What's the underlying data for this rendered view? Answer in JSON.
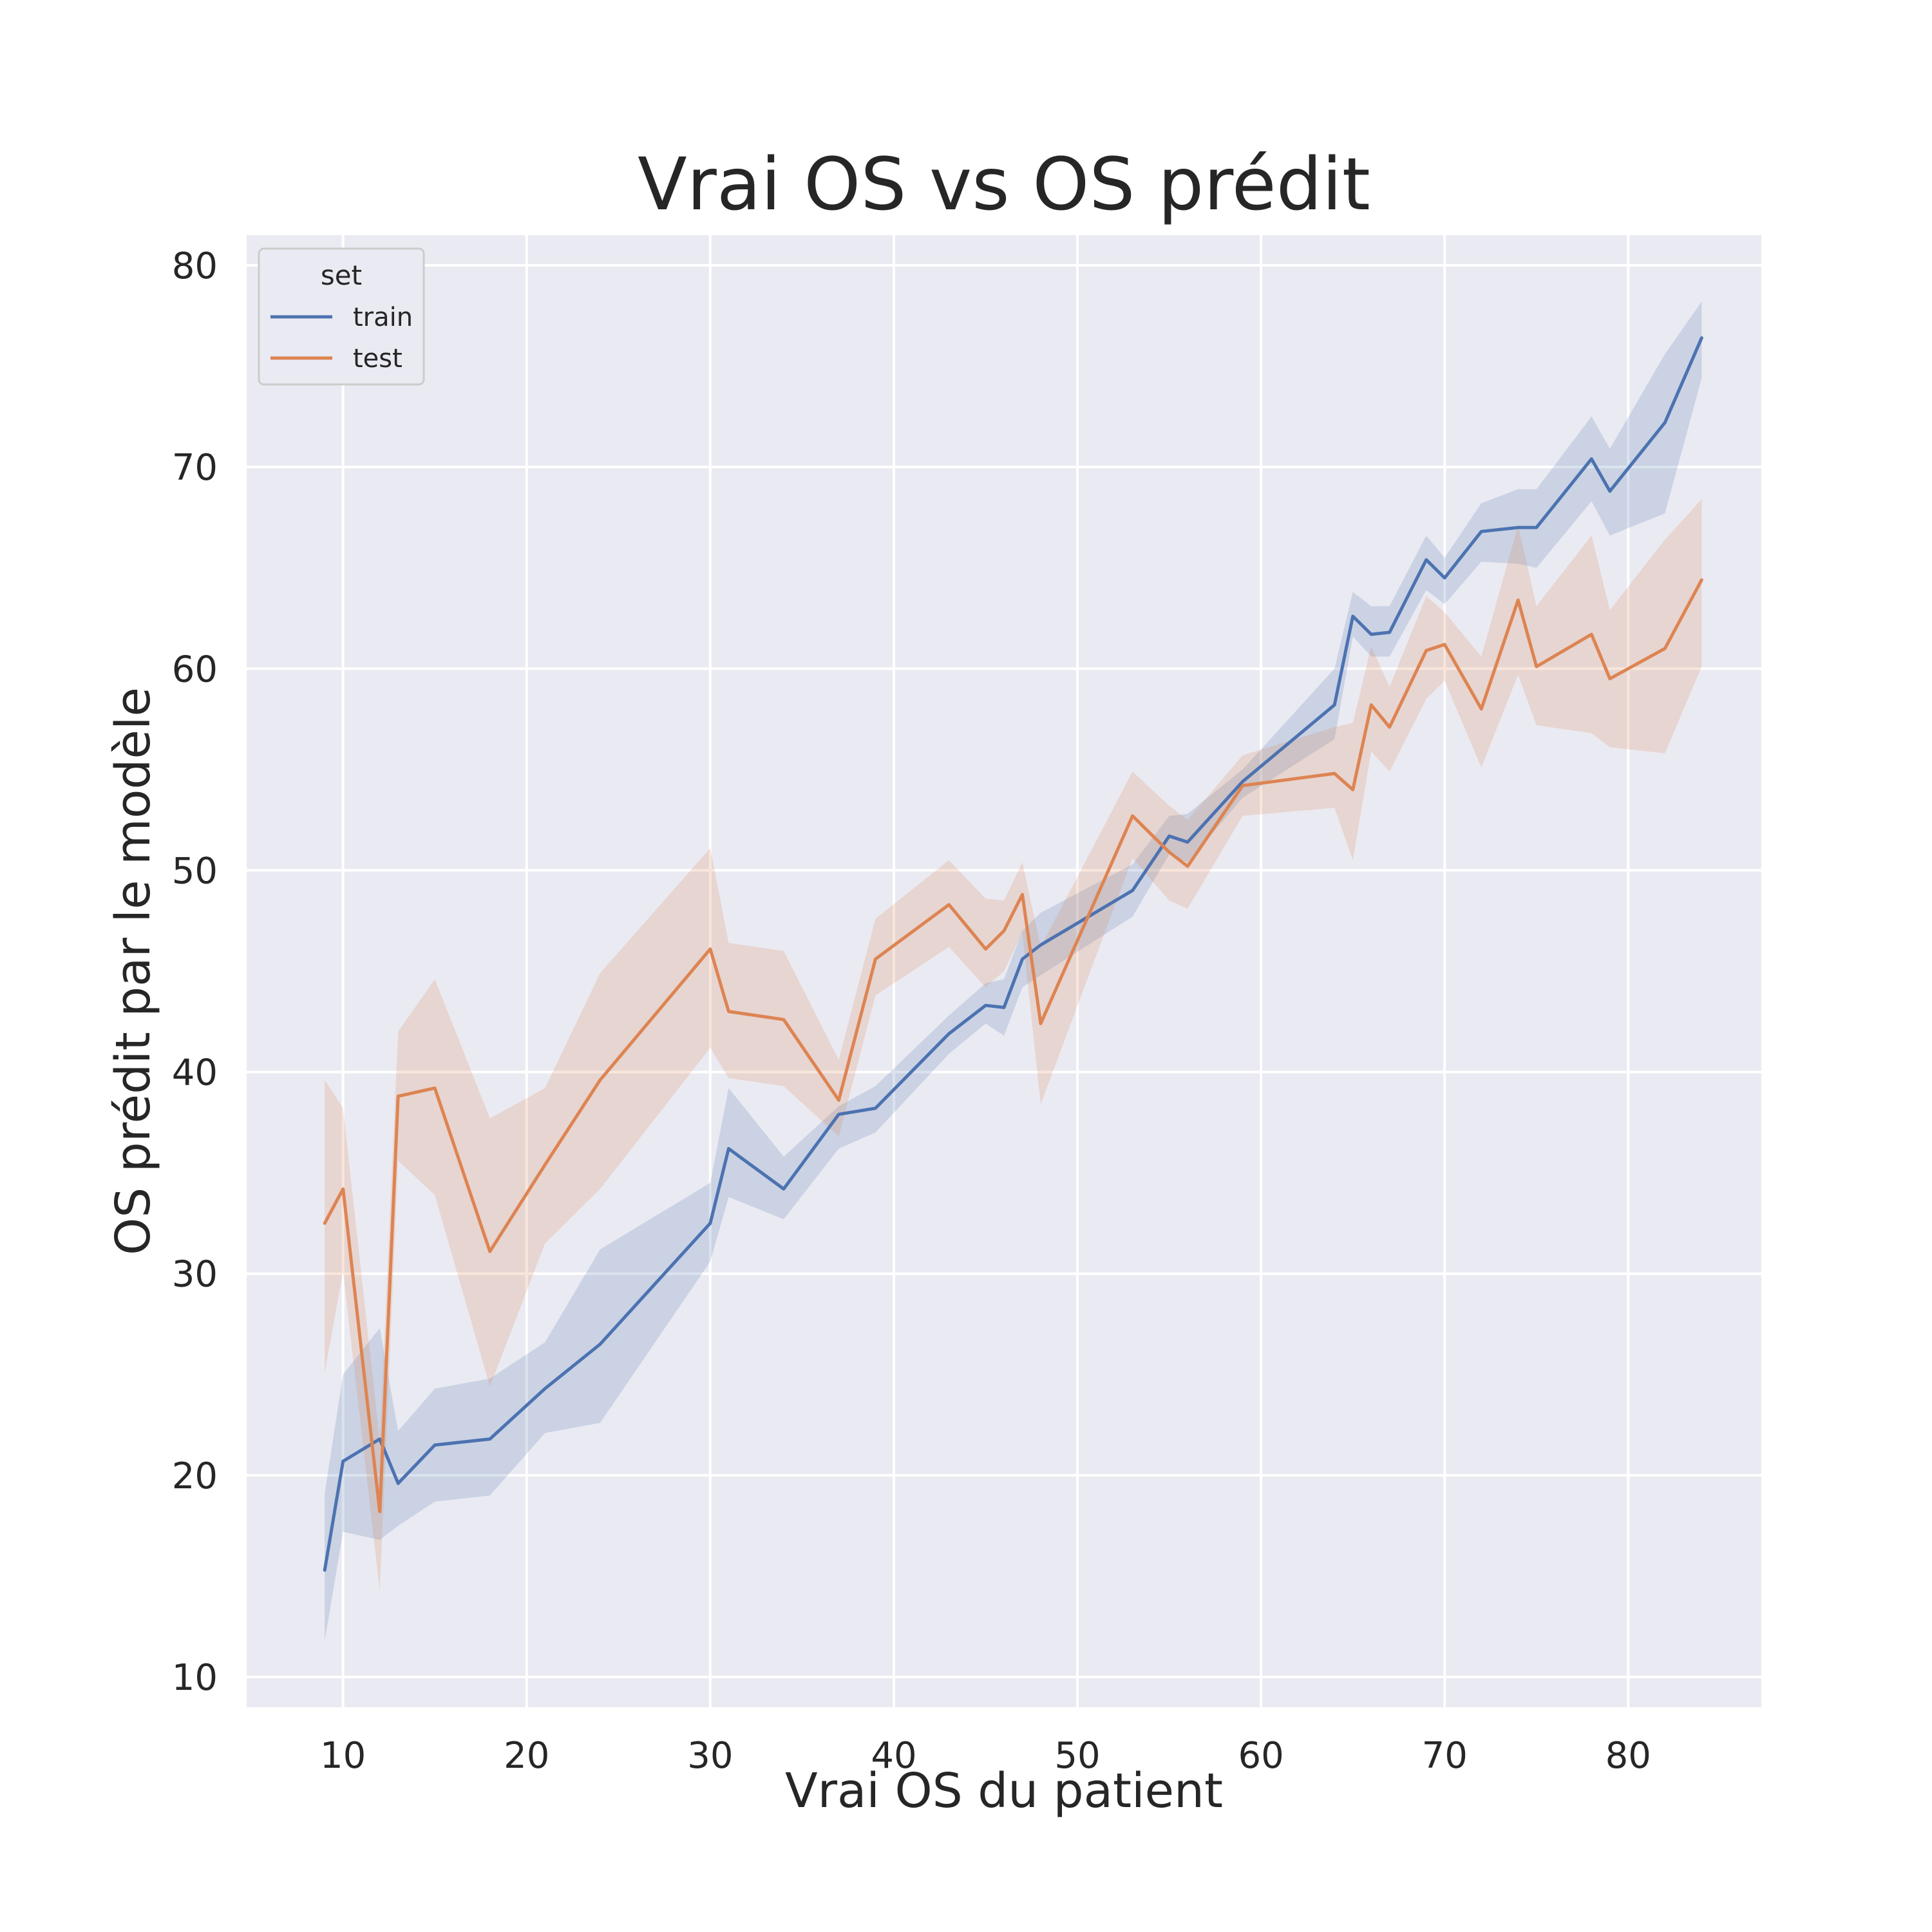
{
  "chart_data": {
    "type": "line",
    "title": "Vrai OS vs OS prédit",
    "xlabel": "Vrai OS du patient",
    "ylabel": "OS prédit par le modèle",
    "xlim": [
      4.75,
      87.25
    ],
    "ylim": [
      8.5,
      81.5
    ],
    "xticks": [
      10,
      20,
      30,
      40,
      50,
      60,
      70,
      80
    ],
    "yticks": [
      10,
      20,
      30,
      40,
      50,
      60,
      70,
      80
    ],
    "grid": true,
    "legend": {
      "title": "set",
      "location": "top-left"
    },
    "colors": {
      "background": "#eaeaf2",
      "grid": "#ffffff",
      "text": "#262626"
    },
    "series": [
      {
        "name": "train",
        "color": "#4c72b0",
        "x": [
          9,
          10,
          12,
          13,
          15,
          18,
          21,
          24,
          30,
          31,
          34,
          37,
          39,
          43,
          45,
          46,
          47,
          48,
          53,
          55,
          56,
          59,
          64,
          65,
          66,
          67,
          69,
          70,
          72,
          74,
          75,
          78,
          79,
          82,
          84
        ],
        "y": [
          15.3,
          20.7,
          21.8,
          19.6,
          21.5,
          21.8,
          24.3,
          26.5,
          32.5,
          36.2,
          34.2,
          37.9,
          38.2,
          41.9,
          43.3,
          43.2,
          45.6,
          46.3,
          49.0,
          51.7,
          51.4,
          54.4,
          58.2,
          62.6,
          61.7,
          61.8,
          65.4,
          64.5,
          66.8,
          67.0,
          67.0,
          70.4,
          68.8,
          72.2,
          76.4
        ],
        "lower": [
          11.8,
          17.2,
          16.8,
          17.5,
          18.7,
          19.0,
          22.1,
          22.6,
          30.6,
          33.8,
          32.7,
          36.2,
          37.0,
          40.9,
          42.4,
          41.8,
          44.2,
          44.8,
          47.7,
          50.8,
          50.4,
          53.6,
          56.5,
          61.6,
          60.6,
          60.6,
          63.9,
          63.2,
          65.3,
          65.2,
          65.0,
          68.3,
          66.6,
          67.7,
          74.4
        ],
        "upper": [
          19.1,
          25.0,
          27.3,
          22.2,
          24.3,
          24.8,
          26.6,
          31.2,
          34.5,
          39.2,
          35.8,
          38.3,
          39.3,
          42.8,
          44.4,
          44.6,
          47.0,
          47.9,
          50.3,
          52.7,
          52.8,
          55.0,
          60.0,
          63.8,
          63.1,
          63.1,
          66.6,
          65.5,
          68.2,
          68.9,
          68.9,
          72.5,
          70.9,
          75.6,
          78.2
        ]
      },
      {
        "name": "test",
        "color": "#dd8452",
        "x": [
          9,
          10,
          12,
          13,
          15,
          18,
          21,
          24,
          30,
          31,
          34,
          37,
          39,
          43,
          45,
          46,
          47,
          48,
          53,
          55,
          56,
          59,
          64,
          65,
          66,
          67,
          69,
          70,
          72,
          74,
          75,
          78,
          79,
          82,
          84
        ],
        "y": [
          32.5,
          34.2,
          18.2,
          38.8,
          39.2,
          31.1,
          35.4,
          39.6,
          46.1,
          43.0,
          42.6,
          38.6,
          45.6,
          48.3,
          46.1,
          47.0,
          48.8,
          42.4,
          52.7,
          50.9,
          50.2,
          54.2,
          54.8,
          54.0,
          58.2,
          57.1,
          60.9,
          61.2,
          58.0,
          63.4,
          60.1,
          61.7,
          59.5,
          61.0,
          64.4
        ],
        "lower": [
          25.1,
          30.1,
          14.3,
          35.6,
          33.9,
          24.4,
          31.5,
          34.2,
          41.2,
          39.7,
          39.3,
          36.8,
          43.8,
          46.2,
          44.2,
          45.0,
          46.9,
          38.4,
          50.6,
          48.5,
          48.1,
          52.7,
          53.1,
          50.5,
          55.9,
          54.9,
          58.5,
          59.4,
          55.1,
          59.7,
          57.2,
          56.8,
          56.1,
          55.8,
          60.1
        ],
        "upper": [
          39.6,
          38.2,
          21.7,
          42.0,
          44.6,
          37.7,
          39.2,
          44.9,
          51.1,
          46.4,
          46.0,
          40.6,
          47.6,
          50.5,
          48.6,
          48.5,
          50.4,
          46.2,
          54.9,
          53.2,
          52.5,
          55.7,
          57.1,
          57.3,
          61.1,
          59.1,
          63.6,
          62.8,
          60.6,
          67.1,
          63.1,
          66.6,
          62.9,
          66.4,
          68.4
        ]
      }
    ]
  }
}
